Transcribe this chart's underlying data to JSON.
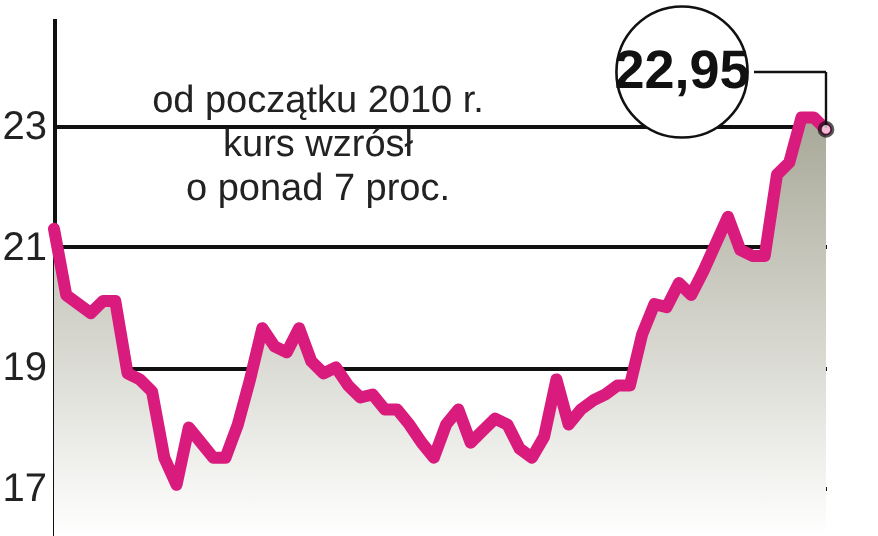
{
  "chart_data": {
    "type": "area",
    "categories": [
      null,
      null,
      null,
      null,
      null,
      null,
      null,
      null,
      null,
      null,
      null,
      null,
      null,
      null,
      null,
      null,
      null,
      null,
      null,
      null,
      null,
      null,
      null,
      null,
      null,
      null,
      null,
      null,
      null,
      null,
      null,
      null,
      null,
      null,
      null,
      null,
      null,
      null,
      null,
      null,
      null,
      null,
      null,
      null,
      null,
      null,
      null,
      null,
      null,
      null,
      null,
      null,
      null,
      null,
      null,
      null,
      null,
      null,
      null,
      null,
      null,
      null,
      null,
      null
    ],
    "series": [
      {
        "color": "#d81b7d",
        "values": [
          21.3,
          20.2,
          20.05,
          19.9,
          20.1,
          20.1,
          18.9,
          18.8,
          18.6,
          17.5,
          17.05,
          18.0,
          17.75,
          17.5,
          17.5,
          18.05,
          18.8,
          19.65,
          19.35,
          19.25,
          19.65,
          19.1,
          18.9,
          19.0,
          18.7,
          18.5,
          18.55,
          18.3,
          18.3,
          18.05,
          17.75,
          17.5,
          18.05,
          18.3,
          17.75,
          17.95,
          18.15,
          18.05,
          17.65,
          17.5,
          17.85,
          18.8,
          18.05,
          18.3,
          18.45,
          18.55,
          18.7,
          18.7,
          19.55,
          20.05,
          20.0,
          20.4,
          20.2,
          20.6,
          21.05,
          21.5,
          20.95,
          20.85,
          20.85,
          22.2,
          22.4,
          23.15,
          23.15,
          22.95
        ]
      }
    ],
    "ylim": [
      16.2,
      24.8
    ],
    "yticks": [
      17,
      19,
      21,
      23
    ],
    "grid": "y",
    "annotations": [
      "od początku 2010 r.\nkurs wzrósł\no ponad 7 proc.",
      "22,95"
    ]
  }
}
